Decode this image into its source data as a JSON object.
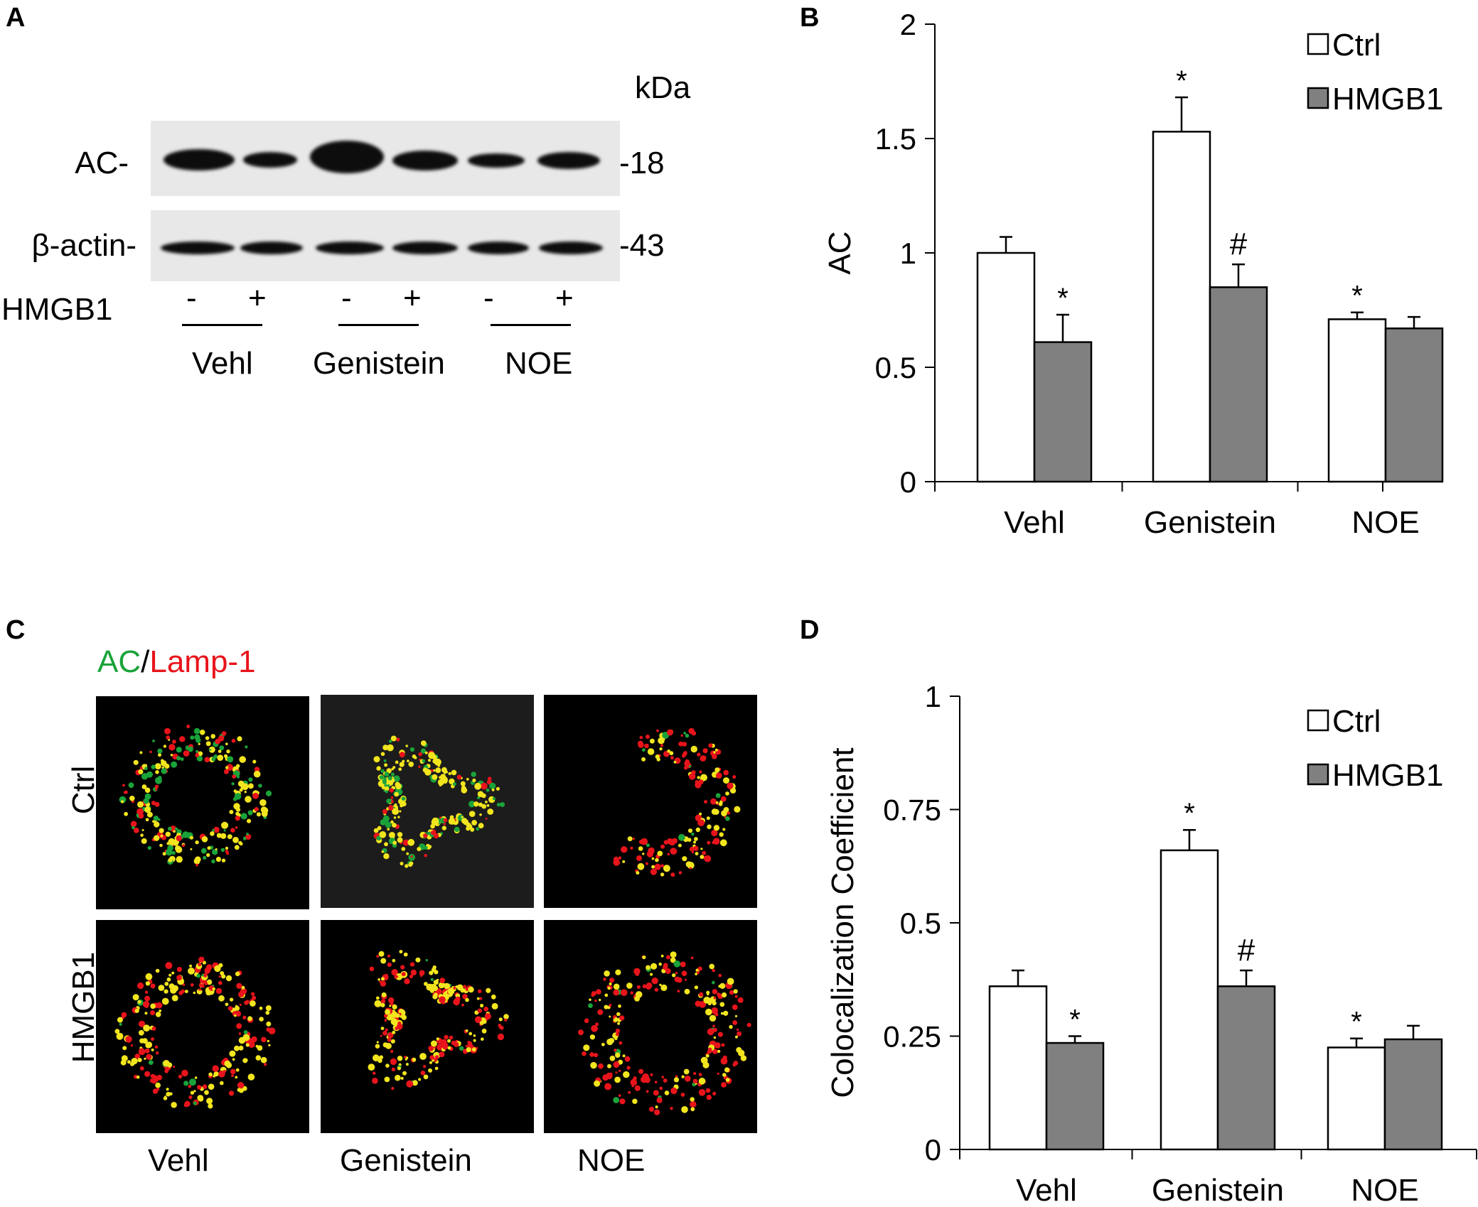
{
  "panels": {
    "a": "A",
    "b": "B",
    "c": "C",
    "d": "D"
  },
  "western": {
    "kda_label": "kDa",
    "rows": [
      {
        "label": "AC-",
        "marker": "-18"
      },
      {
        "label": "β-actin-",
        "marker": "-43"
      }
    ],
    "hmgb1_label": "HMGB1",
    "lane_signs": [
      "-",
      "+",
      "-",
      "+",
      "-",
      "+"
    ],
    "groups": [
      "Vehl",
      "Genistein",
      "NOE"
    ]
  },
  "microscopy": {
    "channel_green": "AC",
    "separator": "/",
    "channel_red": "Lamp-1",
    "rows": [
      "Ctrl",
      "HMGB1"
    ],
    "columns": [
      "Vehl",
      "Genistein",
      "NOE"
    ],
    "colors": {
      "green": "#1aa33a",
      "red": "#e8141b",
      "yellow": "#f2e51e"
    }
  },
  "colors": {
    "ctrl_fill": "#ffffff",
    "hmgb1_fill": "#808080"
  },
  "chart_data": [
    {
      "type": "bar",
      "categories": [
        "Vehl",
        "Genistein",
        "NOE"
      ],
      "series": [
        {
          "name": "Ctrl",
          "values": [
            1.0,
            1.53,
            0.71
          ],
          "errors": [
            0.07,
            0.15,
            0.03
          ],
          "marks": [
            "",
            "*",
            "*"
          ]
        },
        {
          "name": "HMGB1",
          "values": [
            0.61,
            0.85,
            0.67
          ],
          "errors": [
            0.12,
            0.1,
            0.05
          ],
          "marks": [
            "*",
            "#",
            ""
          ]
        }
      ],
      "ylabel": "AC",
      "ylim": [
        0,
        2
      ],
      "yticks": [
        "0",
        "0.5",
        "1",
        "1.5",
        "2"
      ],
      "legend": "top-right"
    },
    {
      "type": "bar",
      "categories": [
        "Vehl",
        "Genistein",
        "NOE"
      ],
      "series": [
        {
          "name": "Ctrl",
          "values": [
            0.36,
            0.66,
            0.225
          ],
          "errors": [
            0.035,
            0.045,
            0.02
          ],
          "marks": [
            "",
            "*",
            "*"
          ]
        },
        {
          "name": "HMGB1",
          "values": [
            0.235,
            0.36,
            0.243
          ],
          "errors": [
            0.015,
            0.035,
            0.03
          ],
          "marks": [
            "*",
            "#",
            ""
          ]
        }
      ],
      "ylabel": "Colocalization Coefficient",
      "ylim": [
        0,
        1
      ],
      "yticks": [
        "0",
        "0.25",
        "0.5",
        "0.75",
        "1"
      ],
      "legend": "top-right"
    }
  ]
}
